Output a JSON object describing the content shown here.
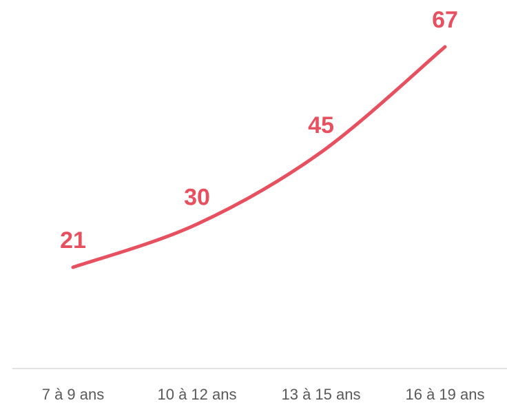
{
  "chart_data": {
    "type": "line",
    "title": "",
    "xlabel": "",
    "ylabel": "",
    "categories": [
      "7 à 9 ans",
      "10 à 12 ans",
      "13 à 15 ans",
      "16 à 19 ans"
    ],
    "series": [
      {
        "values": [
          21,
          30,
          45,
          67
        ],
        "color": "#E6505F",
        "smooth": true
      }
    ],
    "data_labels": [
      "21",
      "30",
      "45",
      "67"
    ],
    "ylim": [
      0,
      70
    ],
    "grid": false,
    "legend": "none",
    "axis_color": "#D9D9D9"
  }
}
